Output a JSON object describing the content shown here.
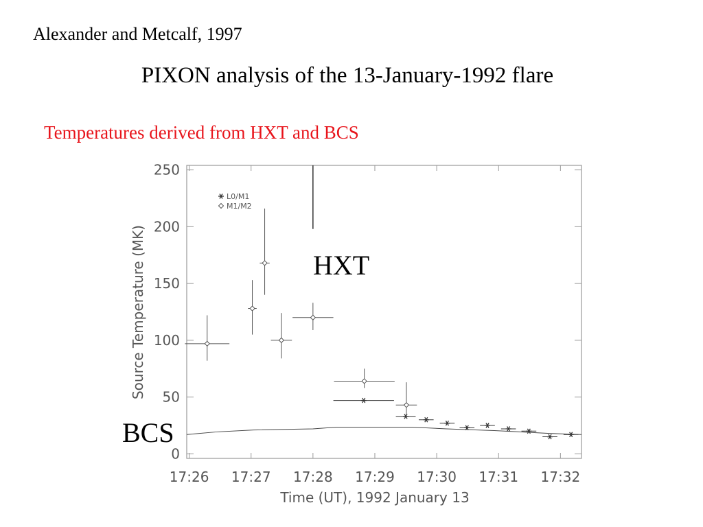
{
  "chart_data": {
    "type": "scatter",
    "source": "Alexander and Metcalf, 1997",
    "title": "PIXON analysis of the 13-January-1992 flare",
    "subtitle": "Temperatures derived from HXT and BCS",
    "x_label": "Time (UT), 1992 January 13",
    "y_label": "Source Temperature (MK)",
    "xlim": [
      25.96,
      32.34
    ],
    "ylim": [
      -4,
      254
    ],
    "xticks": [
      {
        "value": 26,
        "label": "17:26"
      },
      {
        "value": 27,
        "label": "17:27"
      },
      {
        "value": 28,
        "label": "17:28"
      },
      {
        "value": 29,
        "label": "17:29"
      },
      {
        "value": 30,
        "label": "17:30"
      },
      {
        "value": 31,
        "label": "17:31"
      },
      {
        "value": 32,
        "label": "17:32"
      }
    ],
    "yticks": [
      0,
      50,
      100,
      150,
      200,
      250
    ],
    "series": [
      {
        "name": "L0/M1",
        "marker": "asterisk",
        "color": "#333333",
        "x": [
          28.82,
          29.5,
          29.83,
          30.17,
          30.49,
          30.82,
          31.16,
          31.49,
          31.83,
          32.17
        ],
        "values": [
          47,
          33,
          30,
          27,
          23,
          25,
          22,
          20,
          15,
          17
        ],
        "xerr": [
          0.49,
          0.16,
          0.12,
          0.12,
          0.12,
          0.12,
          0.12,
          0.12,
          0.12,
          0.12
        ]
      },
      {
        "name": "M1/M2",
        "marker": "diamond",
        "color": "#555555",
        "x": [
          26.29,
          27.02,
          27.22,
          27.49,
          28.0,
          28.83,
          29.51
        ],
        "values": [
          97,
          128,
          168,
          100,
          120,
          64,
          43
        ],
        "xerr": [
          0.36,
          0.07,
          0.08,
          0.17,
          0.33,
          0.49,
          0.17
        ],
        "y_low": [
          82,
          105,
          140,
          84,
          109,
          58,
          34
        ],
        "y_high": [
          122,
          153,
          216,
          124,
          133,
          75,
          63
        ]
      },
      {
        "name": "BCS",
        "marker": "line",
        "color": "#444444",
        "x": [
          25.96,
          26.44,
          27.04,
          28.0,
          28.38,
          29.6,
          30.16,
          30.93,
          31.82,
          32.34
        ],
        "values": [
          17,
          19.3,
          21,
          22,
          23.5,
          23.5,
          22,
          20.5,
          18,
          17
        ]
      }
    ],
    "hxt_marker": {
      "label": "HXT",
      "x": 28.0,
      "y": [
        198,
        254
      ]
    }
  }
}
